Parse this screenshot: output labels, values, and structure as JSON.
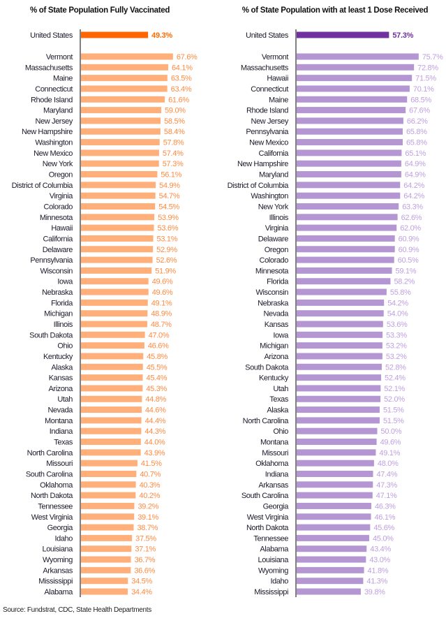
{
  "chart_data": [
    {
      "type": "bar",
      "orientation": "horizontal",
      "title": "% of State Population Fully Vaccinated",
      "highlight": {
        "category": "United States",
        "value": 49.3,
        "label": "49.3%"
      },
      "categories": [
        "Vermont",
        "Massachusetts",
        "Maine",
        "Connecticut",
        "Rhode Island",
        "Maryland",
        "New Jersey",
        "New Hampshire",
        "Washington",
        "New Mexico",
        "New York",
        "Oregon",
        "District of Columbia",
        "Virginia",
        "Colorado",
        "Minnesota",
        "Hawaii",
        "California",
        "Delaware",
        "Pennsylvania",
        "Wisconsin",
        "Iowa",
        "Nebraska",
        "Florida",
        "Michigan",
        "Illinois",
        "South Dakota",
        "Ohio",
        "Kentucky",
        "Alaska",
        "Kansas",
        "Arizona",
        "Utah",
        "Nevada",
        "Montana",
        "Indiana",
        "Texas",
        "North Carolina",
        "Missouri",
        "South Carolina",
        "Oklahoma",
        "North Dakota",
        "Tennessee",
        "West Virginia",
        "Georgia",
        "Idaho",
        "Louisiana",
        "Wyoming",
        "Arkansas",
        "Mississippi",
        "Alabama"
      ],
      "values": [
        67.6,
        64.1,
        63.5,
        63.4,
        61.6,
        59.0,
        58.5,
        58.4,
        57.8,
        57.4,
        57.3,
        56.1,
        54.9,
        54.7,
        54.5,
        53.9,
        53.6,
        53.1,
        52.9,
        52.6,
        51.9,
        49.6,
        49.6,
        49.1,
        48.9,
        48.7,
        47.0,
        46.6,
        45.8,
        45.5,
        45.4,
        45.3,
        44.8,
        44.6,
        44.4,
        44.3,
        44.0,
        43.9,
        41.5,
        40.7,
        40.3,
        40.2,
        39.2,
        39.1,
        38.7,
        37.5,
        37.1,
        36.7,
        36.6,
        34.5,
        34.4
      ],
      "value_suffix": "%",
      "colors": {
        "highlight_bar": "#ff6600",
        "bar": "#ffb07a",
        "highlight_label": "#ff6a00",
        "label": "#ff8a40"
      },
      "grid": false,
      "legend": "none"
    },
    {
      "type": "bar",
      "orientation": "horizontal",
      "title": "% of State Population with at least 1 Dose Received",
      "highlight": {
        "category": "United States",
        "value": 57.3,
        "label": "57.3%"
      },
      "categories": [
        "Vermont",
        "Massachusetts",
        "Hawaii",
        "Connecticut",
        "Maine",
        "Rhode Island",
        "New Jersey",
        "Pennsylvania",
        "New Mexico",
        "California",
        "New Hampshire",
        "Maryland",
        "District of Columbia",
        "Washington",
        "New York",
        "Illinois",
        "Virginia",
        "Delaware",
        "Oregon",
        "Colorado",
        "Minnesota",
        "Florida",
        "Wisconsin",
        "Nebraska",
        "Nevada",
        "Kansas",
        "Iowa",
        "Michigan",
        "Arizona",
        "South Dakota",
        "Kentucky",
        "Utah",
        "Texas",
        "Alaska",
        "North Carolina",
        "Ohio",
        "Montana",
        "Missouri",
        "Oklahoma",
        "Indiana",
        "Arkansas",
        "South Carolina",
        "Georgia",
        "West Virginia",
        "North Dakota",
        "Tennessee",
        "Alabama",
        "Louisiana",
        "Wyoming",
        "Idaho",
        "Mississippi"
      ],
      "values": [
        75.7,
        72.8,
        71.5,
        70.1,
        68.5,
        67.6,
        66.2,
        65.8,
        65.8,
        65.1,
        64.9,
        64.9,
        64.2,
        64.2,
        63.3,
        62.6,
        62.0,
        60.9,
        60.9,
        60.5,
        59.1,
        58.2,
        55.8,
        54.2,
        54.0,
        53.6,
        53.3,
        53.2,
        53.2,
        52.8,
        52.4,
        52.1,
        52.0,
        51.5,
        51.5,
        50.0,
        49.6,
        49.1,
        48.0,
        47.4,
        47.3,
        47.1,
        46.3,
        46.1,
        45.6,
        45.0,
        43.4,
        43.0,
        41.8,
        41.3,
        39.8
      ],
      "value_suffix": "%",
      "colors": {
        "highlight_bar": "#7030a0",
        "bar": "#b496d2",
        "highlight_label": "#7030a0",
        "label": "#c0a0e0"
      },
      "grid": false,
      "legend": "none"
    }
  ],
  "source": "Source: Fundstrat, CDC, State Health Departments"
}
